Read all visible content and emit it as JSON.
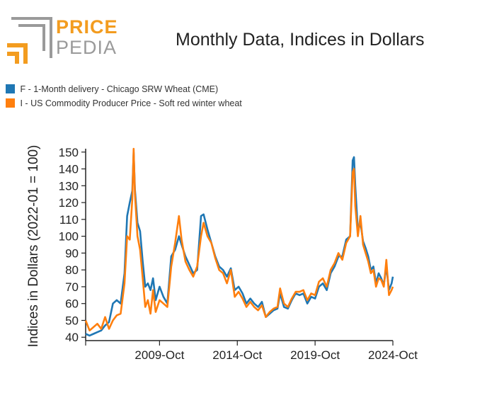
{
  "logo": {
    "word1": "PRICE",
    "word2": "PEDIA",
    "color_primary": "#f39c1f",
    "color_secondary": "#9a9a9a"
  },
  "chart_data": {
    "type": "line",
    "title": "Monthly Data, Indices in Dollars",
    "ylabel": "Indices in Dollars (2022-01 = 100)",
    "xlabel": "",
    "ylim": [
      38,
      152
    ],
    "yticks": [
      40,
      50,
      60,
      70,
      80,
      90,
      100,
      110,
      120,
      130,
      140,
      150
    ],
    "xlim": [
      "2005-01",
      "2024-10"
    ],
    "xticks": [
      {
        "label": "2009-Oct",
        "date": "2009-10"
      },
      {
        "label": "2014-Oct",
        "date": "2014-10"
      },
      {
        "label": "2019-Oct",
        "date": "2019-10"
      },
      {
        "label": "2024-Oct",
        "date": "2024-10"
      }
    ],
    "legend_position": "top-left",
    "series": [
      {
        "name": "F - 1-Month delivery - Chicago SRW Wheat (CME)",
        "color": "#1f77b4",
        "points": [
          [
            "2005-01",
            42
          ],
          [
            "2005-04",
            41
          ],
          [
            "2005-07",
            42
          ],
          [
            "2005-10",
            43
          ],
          [
            "2006-01",
            44
          ],
          [
            "2006-04",
            47
          ],
          [
            "2006-07",
            49
          ],
          [
            "2006-10",
            60
          ],
          [
            "2007-01",
            62
          ],
          [
            "2007-04",
            60
          ],
          [
            "2007-07",
            78
          ],
          [
            "2007-09",
            112
          ],
          [
            "2007-11",
            120
          ],
          [
            "2008-01",
            127
          ],
          [
            "2008-02",
            150
          ],
          [
            "2008-03",
            128
          ],
          [
            "2008-05",
            108
          ],
          [
            "2008-07",
            103
          ],
          [
            "2008-09",
            85
          ],
          [
            "2008-11",
            70
          ],
          [
            "2009-01",
            72
          ],
          [
            "2009-03",
            68
          ],
          [
            "2009-05",
            75
          ],
          [
            "2009-07",
            62
          ],
          [
            "2009-10",
            70
          ],
          [
            "2010-01",
            64
          ],
          [
            "2010-04",
            60
          ],
          [
            "2010-07",
            88
          ],
          [
            "2010-10",
            92
          ],
          [
            "2011-01",
            100
          ],
          [
            "2011-03",
            95
          ],
          [
            "2011-06",
            88
          ],
          [
            "2011-09",
            83
          ],
          [
            "2011-12",
            78
          ],
          [
            "2012-03",
            80
          ],
          [
            "2012-06",
            112
          ],
          [
            "2012-08",
            113
          ],
          [
            "2012-11",
            104
          ],
          [
            "2013-02",
            96
          ],
          [
            "2013-05",
            88
          ],
          [
            "2013-08",
            82
          ],
          [
            "2013-11",
            80
          ],
          [
            "2014-02",
            76
          ],
          [
            "2014-05",
            81
          ],
          [
            "2014-08",
            68
          ],
          [
            "2014-11",
            70
          ],
          [
            "2015-02",
            66
          ],
          [
            "2015-05",
            60
          ],
          [
            "2015-08",
            63
          ],
          [
            "2015-11",
            60
          ],
          [
            "2016-02",
            58
          ],
          [
            "2016-05",
            61
          ],
          [
            "2016-08",
            52
          ],
          [
            "2016-11",
            54
          ],
          [
            "2017-02",
            56
          ],
          [
            "2017-05",
            57
          ],
          [
            "2017-07",
            66
          ],
          [
            "2017-10",
            58
          ],
          [
            "2018-01",
            57
          ],
          [
            "2018-04",
            62
          ],
          [
            "2018-07",
            66
          ],
          [
            "2018-10",
            65
          ],
          [
            "2019-01",
            66
          ],
          [
            "2019-04",
            60
          ],
          [
            "2019-07",
            64
          ],
          [
            "2019-10",
            63
          ],
          [
            "2020-01",
            70
          ],
          [
            "2020-04",
            72
          ],
          [
            "2020-07",
            68
          ],
          [
            "2020-10",
            78
          ],
          [
            "2021-01",
            82
          ],
          [
            "2021-04",
            88
          ],
          [
            "2021-07",
            88
          ],
          [
            "2021-10",
            98
          ],
          [
            "2022-01",
            100
          ],
          [
            "2022-03",
            145
          ],
          [
            "2022-04",
            147
          ],
          [
            "2022-05",
            130
          ],
          [
            "2022-07",
            103
          ],
          [
            "2022-09",
            108
          ],
          [
            "2022-11",
            97
          ],
          [
            "2023-01",
            93
          ],
          [
            "2023-03",
            88
          ],
          [
            "2023-05",
            80
          ],
          [
            "2023-07",
            82
          ],
          [
            "2023-09",
            72
          ],
          [
            "2023-11",
            78
          ],
          [
            "2024-01",
            75
          ],
          [
            "2024-03",
            71
          ],
          [
            "2024-05",
            82
          ],
          [
            "2024-07",
            68
          ],
          [
            "2024-09",
            72
          ],
          [
            "2024-10",
            76
          ]
        ]
      },
      {
        "name": "I - US Commodity Producer Price - Soft red winter wheat",
        "color": "#ff7f0e",
        "points": [
          [
            "2005-01",
            50
          ],
          [
            "2005-04",
            44
          ],
          [
            "2005-07",
            46
          ],
          [
            "2005-10",
            48
          ],
          [
            "2006-01",
            45
          ],
          [
            "2006-04",
            52
          ],
          [
            "2006-07",
            45
          ],
          [
            "2006-10",
            50
          ],
          [
            "2007-01",
            53
          ],
          [
            "2007-04",
            54
          ],
          [
            "2007-07",
            72
          ],
          [
            "2007-09",
            100
          ],
          [
            "2007-11",
            98
          ],
          [
            "2008-01",
            122
          ],
          [
            "2008-02",
            152
          ],
          [
            "2008-03",
            125
          ],
          [
            "2008-05",
            100
          ],
          [
            "2008-07",
            92
          ],
          [
            "2008-09",
            75
          ],
          [
            "2008-11",
            58
          ],
          [
            "2009-01",
            62
          ],
          [
            "2009-03",
            54
          ],
          [
            "2009-05",
            68
          ],
          [
            "2009-07",
            55
          ],
          [
            "2009-10",
            62
          ],
          [
            "2010-01",
            60
          ],
          [
            "2010-04",
            58
          ],
          [
            "2010-07",
            82
          ],
          [
            "2010-10",
            96
          ],
          [
            "2011-01",
            112
          ],
          [
            "2011-03",
            98
          ],
          [
            "2011-06",
            85
          ],
          [
            "2011-09",
            80
          ],
          [
            "2011-12",
            76
          ],
          [
            "2012-03",
            82
          ],
          [
            "2012-06",
            100
          ],
          [
            "2012-08",
            108
          ],
          [
            "2012-11",
            100
          ],
          [
            "2013-02",
            96
          ],
          [
            "2013-05",
            87
          ],
          [
            "2013-08",
            80
          ],
          [
            "2013-11",
            78
          ],
          [
            "2014-02",
            72
          ],
          [
            "2014-05",
            80
          ],
          [
            "2014-08",
            64
          ],
          [
            "2014-11",
            67
          ],
          [
            "2015-02",
            63
          ],
          [
            "2015-05",
            58
          ],
          [
            "2015-08",
            61
          ],
          [
            "2015-11",
            58
          ],
          [
            "2016-02",
            56
          ],
          [
            "2016-05",
            59
          ],
          [
            "2016-08",
            52
          ],
          [
            "2016-11",
            55
          ],
          [
            "2017-02",
            57
          ],
          [
            "2017-05",
            58
          ],
          [
            "2017-07",
            69
          ],
          [
            "2017-10",
            60
          ],
          [
            "2018-01",
            58
          ],
          [
            "2018-04",
            63
          ],
          [
            "2018-07",
            67
          ],
          [
            "2018-10",
            67
          ],
          [
            "2019-01",
            68
          ],
          [
            "2019-04",
            62
          ],
          [
            "2019-07",
            66
          ],
          [
            "2019-10",
            65
          ],
          [
            "2020-01",
            73
          ],
          [
            "2020-04",
            75
          ],
          [
            "2020-07",
            70
          ],
          [
            "2020-10",
            80
          ],
          [
            "2021-01",
            84
          ],
          [
            "2021-04",
            90
          ],
          [
            "2021-07",
            86
          ],
          [
            "2021-10",
            96
          ],
          [
            "2022-01",
            100
          ],
          [
            "2022-03",
            138
          ],
          [
            "2022-04",
            140
          ],
          [
            "2022-05",
            118
          ],
          [
            "2022-07",
            100
          ],
          [
            "2022-09",
            112
          ],
          [
            "2022-11",
            95
          ],
          [
            "2023-01",
            90
          ],
          [
            "2023-03",
            85
          ],
          [
            "2023-05",
            78
          ],
          [
            "2023-07",
            80
          ],
          [
            "2023-09",
            70
          ],
          [
            "2023-11",
            75
          ],
          [
            "2024-01",
            74
          ],
          [
            "2024-03",
            70
          ],
          [
            "2024-05",
            86
          ],
          [
            "2024-07",
            65
          ],
          [
            "2024-09",
            68
          ],
          [
            "2024-10",
            70
          ]
        ]
      }
    ]
  }
}
